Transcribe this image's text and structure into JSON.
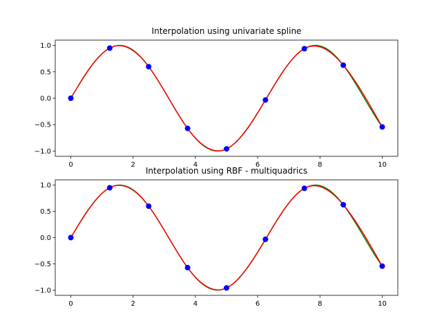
{
  "colors": {
    "true_curve": "#008000",
    "interp_curve": "#ff0000",
    "samples": "#0000ff",
    "axes": "#000000"
  },
  "chart_data": [
    {
      "type": "line",
      "title": "Interpolation using univariate spline",
      "xlabel": "",
      "ylabel": "",
      "xlim": [
        -0.5,
        10.5
      ],
      "ylim": [
        -1.1,
        1.1
      ],
      "xticks": [
        0,
        2,
        4,
        6,
        8,
        10
      ],
      "yticks": [
        -1.0,
        -0.5,
        0.0,
        0.5,
        1.0
      ],
      "xtick_labels": [
        "0",
        "2",
        "4",
        "6",
        "8",
        "10"
      ],
      "ytick_labels": [
        "−1.0",
        "−0.5",
        "0.0",
        "0.5",
        "1.0"
      ],
      "grid": false,
      "series": [
        {
          "style": "line",
          "color": "green",
          "function": "sin(x)",
          "x_range": [
            0,
            10
          ]
        },
        {
          "style": "line",
          "color": "red",
          "x_range": [
            0,
            10
          ]
        },
        {
          "style": "scatter",
          "color": "blue",
          "x": [
            0,
            1.25,
            2.5,
            3.75,
            5.0,
            6.25,
            7.5,
            8.75,
            10.0
          ],
          "y": [
            0.0,
            0.949,
            0.598,
            -0.572,
            -0.959,
            -0.033,
            0.938,
            0.625,
            -0.544
          ]
        }
      ]
    },
    {
      "type": "line",
      "title": "Interpolation using RBF - multiquadrics",
      "xlabel": "",
      "ylabel": "",
      "xlim": [
        -0.5,
        10.5
      ],
      "ylim": [
        -1.1,
        1.1
      ],
      "xticks": [
        0,
        2,
        4,
        6,
        8,
        10
      ],
      "yticks": [
        -1.0,
        -0.5,
        0.0,
        0.5,
        1.0
      ],
      "xtick_labels": [
        "0",
        "2",
        "4",
        "6",
        "8",
        "10"
      ],
      "ytick_labels": [
        "−1.0",
        "−0.5",
        "0.0",
        "0.5",
        "1.0"
      ],
      "grid": false,
      "series": [
        {
          "style": "line",
          "color": "green",
          "function": "sin(x)",
          "x_range": [
            0,
            10
          ]
        },
        {
          "style": "line",
          "color": "red",
          "x_range": [
            0,
            10
          ]
        },
        {
          "style": "scatter",
          "color": "blue",
          "x": [
            0,
            1.25,
            2.5,
            3.75,
            5.0,
            6.25,
            7.5,
            8.75,
            10.0
          ],
          "y": [
            0.0,
            0.949,
            0.598,
            -0.572,
            -0.959,
            -0.033,
            0.938,
            0.625,
            -0.544
          ]
        }
      ]
    }
  ]
}
